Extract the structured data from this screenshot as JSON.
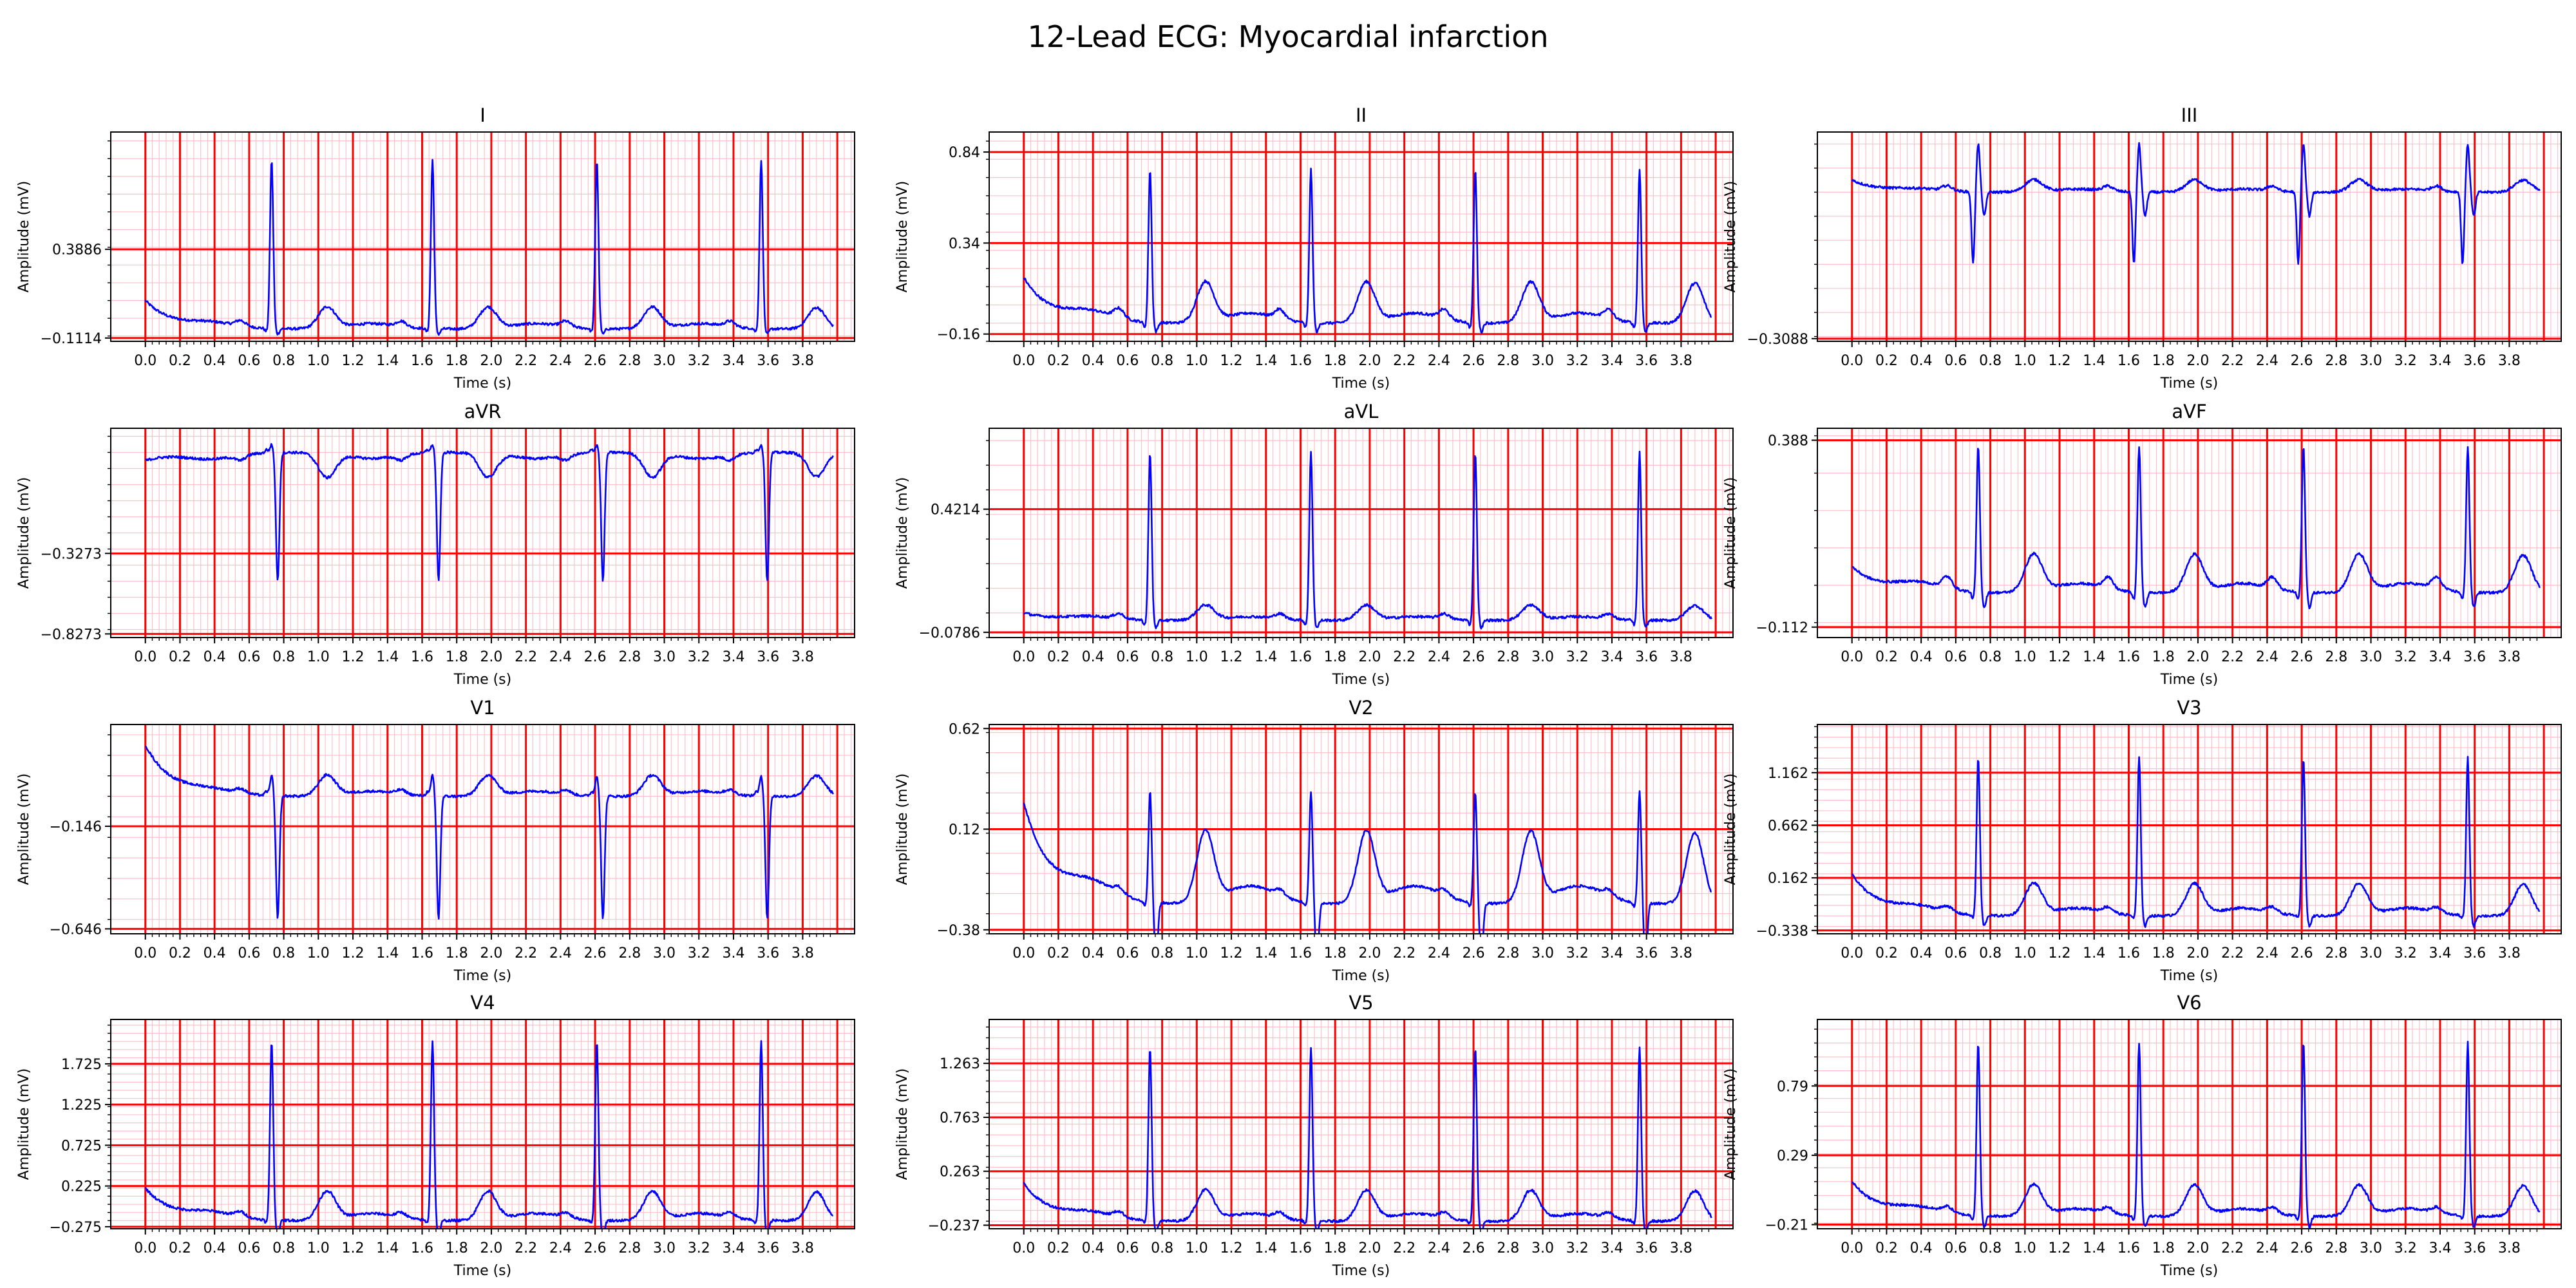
{
  "chart_data": {
    "type": "line",
    "title": "12-Lead ECG: Myocardial infarction",
    "xlabel": "Time (s)",
    "ylabel": "Amplitude (mV)",
    "xlim": [
      -0.2,
      4.1
    ],
    "x_ticks": [
      "0.0",
      "0.2",
      "0.4",
      "0.6",
      "0.8",
      "1.0",
      "1.2",
      "1.4",
      "1.6",
      "1.8",
      "2.0",
      "2.2",
      "2.4",
      "2.6",
      "2.8",
      "3.0",
      "3.2",
      "3.4",
      "3.6",
      "3.8"
    ],
    "grid": "on",
    "line_color": "#0000ff",
    "grid_major_color": "#ff0000",
    "grid_minor_color": "#ffc0cb",
    "beat_times": [
      0.73,
      1.66,
      2.61,
      3.56
    ],
    "leads": [
      {
        "name": "I",
        "ylim": [
          -0.13,
          1.05
        ],
        "yticks": [
          -0.1114,
          0.3886
        ],
        "ytick_labels": [
          "−0.1114",
          "0.3886"
        ],
        "qrs": {
          "q": -0.02,
          "r": 0.95,
          "s": -0.03
        },
        "t_height": 0.12,
        "p_height": 0.03,
        "baseline": -0.06,
        "start": 0.1,
        "end": -0.1
      },
      {
        "name": "II",
        "ylim": [
          -0.2,
          0.95
        ],
        "yticks": [
          -0.16,
          0.34,
          0.84
        ],
        "ytick_labels": [
          "−0.16",
          "0.34",
          "0.84"
        ],
        "qrs": {
          "q": -0.03,
          "r": 0.84,
          "s": -0.05
        },
        "t_height": 0.22,
        "p_height": 0.05,
        "baseline": -0.1,
        "start": 0.15,
        "end": -0.08
      },
      {
        "name": "III",
        "ylim": [
          -0.32,
          0.55
        ],
        "yticks": [
          -0.3088
        ],
        "ytick_labels": [
          "−0.3088"
        ],
        "qrs": {
          "q": -0.3,
          "r": 0.2,
          "s": -0.1
        },
        "t_height": 0.05,
        "p_height": 0.02,
        "baseline": 0.3,
        "start": 0.35,
        "end": 0.3
      },
      {
        "name": "aVR",
        "ylim": [
          -0.85,
          0.45
        ],
        "yticks": [
          -0.8273,
          -0.3273
        ],
        "ytick_labels": [
          "−0.8273",
          "−0.3273"
        ],
        "qrs": {
          "q": 0.02,
          "r": 0.05,
          "s": -0.8
        },
        "t_height": -0.15,
        "p_height": -0.03,
        "baseline": 0.3,
        "start": 0.25,
        "end": 0.3
      },
      {
        "name": "aVL",
        "ylim": [
          -0.1,
          0.75
        ],
        "yticks": [
          -0.0786,
          0.4214
        ],
        "ytick_labels": [
          "−0.0786",
          "0.4214"
        ],
        "qrs": {
          "q": -0.02,
          "r": 0.68,
          "s": -0.03
        },
        "t_height": 0.06,
        "p_height": 0.02,
        "baseline": -0.03,
        "start": 0.0,
        "end": -0.06
      },
      {
        "name": "aVF",
        "ylim": [
          -0.14,
          0.42
        ],
        "yticks": [
          -0.112,
          0.388
        ],
        "ytick_labels": [
          "−0.112",
          "0.388"
        ],
        "qrs": {
          "q": -0.02,
          "r": 0.39,
          "s": -0.04
        },
        "t_height": 0.1,
        "p_height": 0.03,
        "baseline": -0.02,
        "start": 0.05,
        "end": -0.08
      },
      {
        "name": "V1",
        "ylim": [
          -0.67,
          0.35
        ],
        "yticks": [
          -0.646,
          -0.146
        ],
        "ytick_labels": [
          "−0.646",
          "−0.146"
        ],
        "qrs": {
          "q": 0.02,
          "r": 0.1,
          "s": -0.6
        },
        "t_height": 0.1,
        "p_height": 0.02,
        "baseline": 0.0,
        "start": 0.25,
        "end": -0.1
      },
      {
        "name": "V2",
        "ylim": [
          -0.4,
          0.64
        ],
        "yticks": [
          -0.38,
          0.12,
          0.62
        ],
        "ytick_labels": [
          "−0.38",
          "0.12",
          "0.62"
        ],
        "qrs": {
          "q": -0.02,
          "r": 0.55,
          "s": -0.3
        },
        "t_height": 0.35,
        "p_height": 0.03,
        "baseline": -0.25,
        "start": 0.25,
        "end": -0.3
      },
      {
        "name": "V3",
        "ylim": [
          -0.37,
          1.62
        ],
        "yticks": [
          -0.338,
          0.162,
          0.662,
          1.162
        ],
        "ytick_labels": [
          "−0.338",
          "0.162",
          "0.662",
          "1.162"
        ],
        "qrs": {
          "q": -0.03,
          "r": 1.5,
          "s": -0.1
        },
        "t_height": 0.3,
        "p_height": 0.05,
        "baseline": -0.2,
        "start": 0.2,
        "end": -0.2
      },
      {
        "name": "V4",
        "ylim": [
          -0.3,
          2.27
        ],
        "yticks": [
          -0.275,
          0.225,
          0.725,
          1.225,
          1.725
        ],
        "ytick_labels": [
          "−0.275",
          "0.225",
          "0.725",
          "1.225",
          "1.725"
        ],
        "qrs": {
          "q": -0.04,
          "r": 2.2,
          "s": -0.2
        },
        "t_height": 0.35,
        "p_height": 0.06,
        "baseline": -0.2,
        "start": 0.2,
        "end": -0.2
      },
      {
        "name": "V5",
        "ylim": [
          -0.27,
          1.67
        ],
        "yticks": [
          -0.237,
          0.263,
          0.763,
          1.263
        ],
        "ytick_labels": [
          "−0.237",
          "0.263",
          "0.763",
          "1.263"
        ],
        "qrs": {
          "q": -0.03,
          "r": 1.6,
          "s": -0.1
        },
        "t_height": 0.28,
        "p_height": 0.05,
        "baseline": -0.2,
        "start": 0.15,
        "end": -0.2
      },
      {
        "name": "V6",
        "ylim": [
          -0.24,
          1.27
        ],
        "yticks": [
          -0.21,
          0.29,
          0.79
        ],
        "ytick_labels": [
          "−0.21",
          "0.29",
          "0.79"
        ],
        "qrs": {
          "q": -0.03,
          "r": 1.25,
          "s": -0.08
        },
        "t_height": 0.22,
        "p_height": 0.04,
        "baseline": -0.15,
        "start": 0.1,
        "end": -0.17
      }
    ]
  }
}
